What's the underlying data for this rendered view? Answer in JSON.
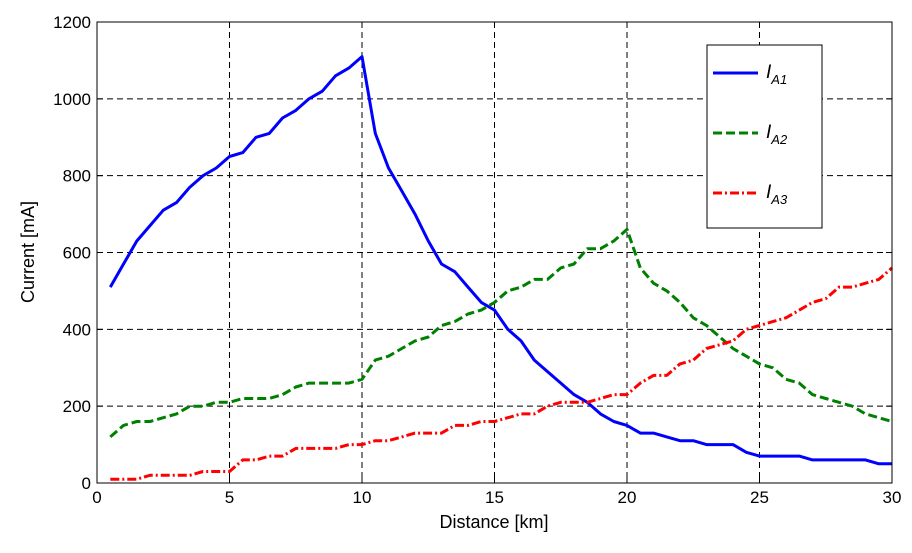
{
  "chart_data": {
    "type": "line",
    "title": "",
    "xlabel": "Distance [km]",
    "ylabel": "Current [mA]",
    "xlim": [
      0,
      30
    ],
    "ylim": [
      0,
      1200
    ],
    "xticks": [
      0,
      5,
      10,
      15,
      20,
      25,
      30
    ],
    "yticks": [
      0,
      200,
      400,
      600,
      800,
      1000,
      1200
    ],
    "grid": true,
    "legend_position": "top-right",
    "series": [
      {
        "name_main": "I",
        "name_sub": "A1",
        "color": "#0000ff",
        "dash": "solid",
        "x": [
          0.5,
          1,
          1.5,
          2,
          2.5,
          3,
          3.5,
          4,
          4.5,
          5,
          5.5,
          6,
          6.5,
          7,
          7.5,
          8,
          8.5,
          9,
          9.5,
          10,
          10.5,
          11,
          11.5,
          12,
          12.5,
          13,
          13.5,
          14,
          14.5,
          15,
          15.5,
          16,
          16.5,
          17,
          17.5,
          18,
          18.5,
          19,
          19.5,
          20,
          20.5,
          21,
          21.5,
          22,
          22.5,
          23,
          23.5,
          24,
          24.5,
          25,
          25.5,
          26,
          26.5,
          27,
          27.5,
          28,
          28.5,
          29,
          29.5,
          30
        ],
        "y": [
          510,
          570,
          630,
          670,
          710,
          730,
          770,
          800,
          820,
          850,
          860,
          900,
          910,
          950,
          970,
          1000,
          1020,
          1060,
          1080,
          1110,
          910,
          820,
          760,
          700,
          630,
          570,
          550,
          510,
          470,
          450,
          400,
          370,
          320,
          290,
          260,
          230,
          210,
          180,
          160,
          150,
          130,
          130,
          120,
          110,
          110,
          100,
          100,
          100,
          80,
          70,
          70,
          70,
          70,
          60,
          60,
          60,
          60,
          60,
          50,
          50
        ]
      },
      {
        "name_main": "I",
        "name_sub": "A2",
        "color": "#008000",
        "dash": "dashed",
        "x": [
          0.5,
          1,
          1.5,
          2,
          2.5,
          3,
          3.5,
          4,
          4.5,
          5,
          5.5,
          6,
          6.5,
          7,
          7.5,
          8,
          8.5,
          9,
          9.5,
          10,
          10.5,
          11,
          11.5,
          12,
          12.5,
          13,
          13.5,
          14,
          14.5,
          15,
          15.5,
          16,
          16.5,
          17,
          17.5,
          18,
          18.5,
          19,
          19.5,
          20,
          20.5,
          21,
          21.5,
          22,
          22.5,
          23,
          23.5,
          24,
          24.5,
          25,
          25.5,
          26,
          26.5,
          27,
          27.5,
          28,
          28.5,
          29,
          29.5,
          30
        ],
        "y": [
          120,
          150,
          160,
          160,
          170,
          180,
          200,
          200,
          210,
          210,
          220,
          220,
          220,
          230,
          250,
          260,
          260,
          260,
          260,
          270,
          320,
          330,
          350,
          370,
          380,
          410,
          420,
          440,
          450,
          470,
          500,
          510,
          530,
          530,
          560,
          570,
          610,
          610,
          630,
          660,
          560,
          520,
          500,
          470,
          430,
          410,
          380,
          350,
          330,
          310,
          300,
          270,
          260,
          230,
          220,
          210,
          200,
          180,
          170,
          160
        ]
      },
      {
        "name_main": "I",
        "name_sub": "A3",
        "color": "#ff0000",
        "dash": "dashdot",
        "x": [
          0.5,
          1,
          1.5,
          2,
          2.5,
          3,
          3.5,
          4,
          4.5,
          5,
          5.5,
          6,
          6.5,
          7,
          7.5,
          8,
          8.5,
          9,
          9.5,
          10,
          10.5,
          11,
          11.5,
          12,
          12.5,
          13,
          13.5,
          14,
          14.5,
          15,
          15.5,
          16,
          16.5,
          17,
          17.5,
          18,
          18.5,
          19,
          19.5,
          20,
          20.5,
          21,
          21.5,
          22,
          22.5,
          23,
          23.5,
          24,
          24.5,
          25,
          25.5,
          26,
          26.5,
          27,
          27.5,
          28,
          28.5,
          29,
          29.5,
          30
        ],
        "y": [
          10,
          10,
          10,
          20,
          20,
          20,
          20,
          30,
          30,
          30,
          60,
          60,
          70,
          70,
          90,
          90,
          90,
          90,
          100,
          100,
          110,
          110,
          120,
          130,
          130,
          130,
          150,
          150,
          160,
          160,
          170,
          180,
          180,
          200,
          210,
          210,
          210,
          220,
          230,
          230,
          260,
          280,
          280,
          310,
          320,
          350,
          360,
          370,
          400,
          410,
          420,
          430,
          450,
          470,
          480,
          510,
          510,
          520,
          530,
          560
        ]
      }
    ]
  }
}
